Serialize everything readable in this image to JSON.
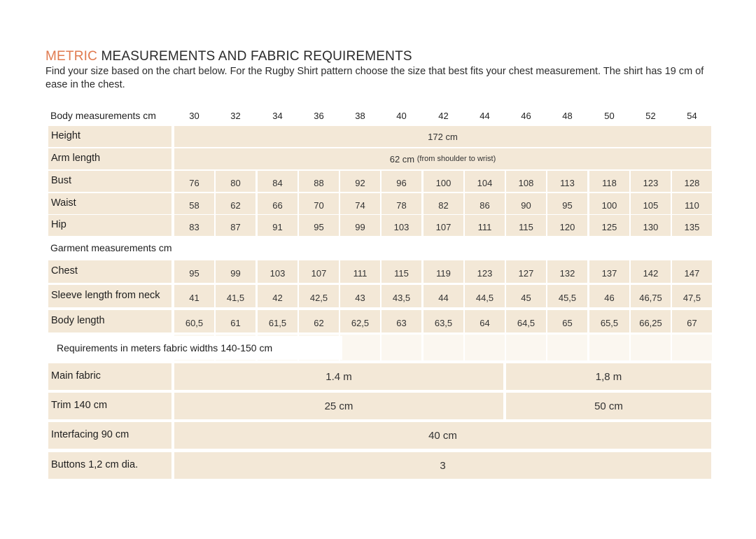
{
  "title": {
    "accent": "METRIC",
    "rest": " MEASUREMENTS AND FABRIC REQUIREMENTS"
  },
  "intro": "Find your size based on the chart below. For the Rugby Shirt pattern choose the size that best fits your chest measurement. The shirt has 19 cm of ease in the chest.",
  "body_section": {
    "header": "Body measurements cm",
    "sizes": [
      "30",
      "32",
      "34",
      "36",
      "38",
      "40",
      "42",
      "44",
      "46",
      "48",
      "50",
      "52",
      "54"
    ],
    "height": {
      "label": "Height",
      "value": "172 cm"
    },
    "arm_length": {
      "label": "Arm length",
      "value": "62 cm",
      "note": "(from shoulder to wrist)"
    },
    "rows": [
      {
        "label": "Bust",
        "values": [
          "76",
          "80",
          "84",
          "88",
          "92",
          "96",
          "100",
          "104",
          "108",
          "113",
          "118",
          "123",
          "128"
        ]
      },
      {
        "label": "Waist",
        "values": [
          "58",
          "62",
          "66",
          "70",
          "74",
          "78",
          "82",
          "86",
          "90",
          "95",
          "100",
          "105",
          "110"
        ]
      },
      {
        "label": "Hip",
        "values": [
          "83",
          "87",
          "91",
          "95",
          "99",
          "103",
          "107",
          "111",
          "115",
          "120",
          "125",
          "130",
          "135"
        ]
      }
    ]
  },
  "garment_section": {
    "header": "Garment measurements cm",
    "rows": [
      {
        "label": "Chest",
        "values": [
          "95",
          "99",
          "103",
          "107",
          "111",
          "115",
          "119",
          "123",
          "127",
          "132",
          "137",
          "142",
          "147"
        ]
      },
      {
        "label": "Sleeve length from neck",
        "values": [
          "41",
          "41,5",
          "42",
          "42,5",
          "43",
          "43,5",
          "44",
          "44,5",
          "45",
          "45,5",
          "46",
          "46,75",
          "47,5"
        ]
      },
      {
        "label": "Body length",
        "values": [
          "60,5",
          "61",
          "61,5",
          "62",
          "62,5",
          "63",
          "63,5",
          "64",
          "64,5",
          "65",
          "65,5",
          "66,25",
          "67"
        ]
      }
    ]
  },
  "fabric_section": {
    "header": "Requirements in meters fabric widths 140-150 cm",
    "main_fabric": {
      "label": "Main fabric",
      "values": [
        "1.4 m",
        "1,8 m"
      ]
    },
    "trim": {
      "label": "Trim  140 cm",
      "values": [
        "25 cm",
        "50 cm"
      ]
    },
    "interfacing": {
      "label": "Interfacing 90 cm",
      "value": "40 cm"
    },
    "buttons": {
      "label": "Buttons 1,2 cm dia.",
      "value": "3"
    }
  },
  "colors": {
    "accent": "#e07a4f",
    "cell_fill": "#f3e8d7",
    "blank_fill": "#fbf7f0"
  }
}
